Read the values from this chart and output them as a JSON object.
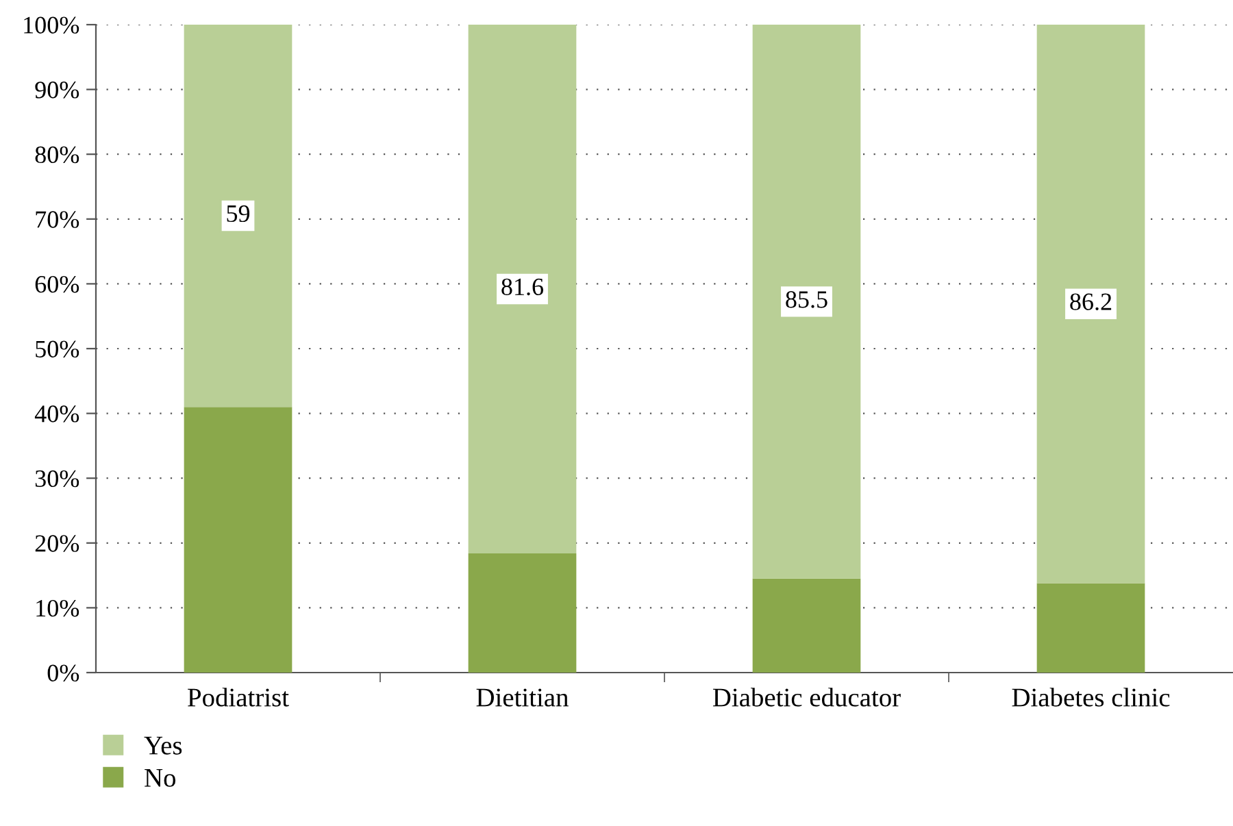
{
  "chart_data": {
    "type": "bar",
    "stacked": true,
    "categories": [
      "Podiatrist",
      "Dietitian",
      "Diabetic educator",
      "Diabetes clinic"
    ],
    "series": [
      {
        "name": "No",
        "color": "#8aa84b",
        "values": [
          41,
          18.4,
          14.5,
          13.8
        ]
      },
      {
        "name": "Yes",
        "color": "#b9cf96",
        "values": [
          59,
          81.6,
          85.5,
          86.2
        ],
        "value_labels": [
          "59",
          "81.6",
          "85.5",
          "86.2"
        ]
      }
    ],
    "ylim": [
      0,
      100
    ],
    "yticks": [
      {
        "value": 0,
        "label": "0%"
      },
      {
        "value": 10,
        "label": "10%"
      },
      {
        "value": 20,
        "label": "20%"
      },
      {
        "value": 30,
        "label": "30%"
      },
      {
        "value": 40,
        "label": "40%"
      },
      {
        "value": 50,
        "label": "50%"
      },
      {
        "value": 60,
        "label": "60%"
      },
      {
        "value": 70,
        "label": "70%"
      },
      {
        "value": 80,
        "label": "80%"
      },
      {
        "value": 90,
        "label": "90%"
      },
      {
        "value": 100,
        "label": "100%"
      }
    ],
    "grid": "y",
    "legend": "bottom left"
  }
}
